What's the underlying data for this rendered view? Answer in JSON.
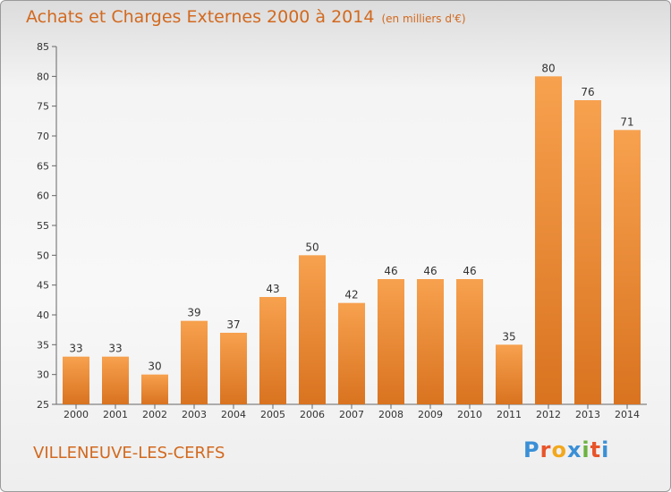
{
  "header": {
    "title": "Achats et Charges Externes 2000 à 2014",
    "unit_note": "(en milliers d'€)"
  },
  "footer": {
    "commune": "VILLENEUVE-LES-CERFS",
    "logo": [
      "P",
      "r",
      "o",
      "x",
      "i",
      "t",
      "i"
    ],
    "logo_colors": [
      "#3a8fd6",
      "#e8542a",
      "#f2a81d",
      "#3a8fd6",
      "#6cb33f",
      "#e8542a",
      "#3a8fd6"
    ]
  },
  "colors": {
    "bar_light": "#f7a14e",
    "bar_dark": "#d97320",
    "accent": "#d2691e"
  },
  "chart_data": {
    "type": "bar",
    "title": "Achats et Charges Externes 2000 à 2014",
    "subtitle": "(en milliers d'€)",
    "xlabel": "",
    "ylabel": "",
    "categories": [
      "2000",
      "2001",
      "2002",
      "2003",
      "2004",
      "2005",
      "2006",
      "2007",
      "2008",
      "2009",
      "2010",
      "2011",
      "2012",
      "2013",
      "2014"
    ],
    "values": [
      33,
      33,
      30,
      39,
      37,
      43,
      50,
      42,
      46,
      46,
      46,
      35,
      80,
      76,
      71
    ],
    "data_labels": [
      "33",
      "33",
      "30",
      "39",
      "37",
      "43",
      "50",
      "42",
      "46",
      "46",
      "46",
      "35",
      "80",
      "76",
      "71"
    ],
    "ylim": [
      25,
      85
    ],
    "yticks": [
      25,
      30,
      35,
      40,
      45,
      50,
      55,
      60,
      65,
      70,
      75,
      80,
      85
    ],
    "grid": false
  }
}
